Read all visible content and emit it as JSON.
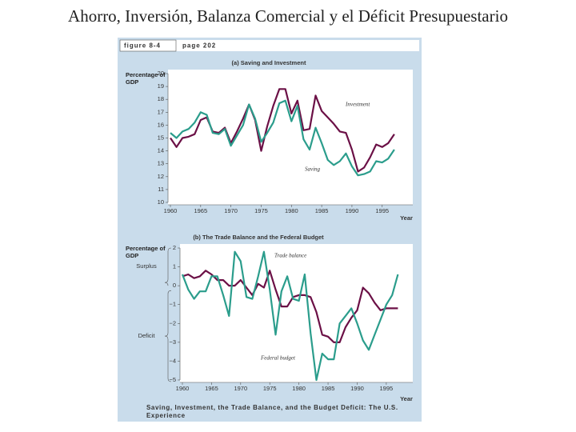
{
  "slide_title": "Ahorro, Inversión, Balanza Comercial y el Déficit Presupuestario",
  "figure_label": "figure 8-4",
  "page_label": "page 202",
  "caption": "Saving, Investment, the Trade Balance, and the Budget Deficit: The U.S. Experience",
  "chart_data": [
    {
      "type": "line",
      "title": "(a) Saving and Investment",
      "y_label": "Percentage of GDP",
      "x_label": "Year",
      "x": [
        1960,
        1961,
        1962,
        1963,
        1964,
        1965,
        1966,
        1967,
        1968,
        1969,
        1970,
        1971,
        1972,
        1973,
        1974,
        1975,
        1976,
        1977,
        1978,
        1979,
        1980,
        1981,
        1982,
        1983,
        1984,
        1985,
        1986,
        1987,
        1988,
        1989,
        1990,
        1991,
        1992,
        1993,
        1994,
        1995,
        1996,
        1997
      ],
      "series": [
        {
          "name": "Investment",
          "color": "#6b1046",
          "values": [
            15.0,
            14.3,
            15.0,
            15.1,
            15.3,
            16.4,
            16.6,
            15.5,
            15.4,
            15.8,
            14.6,
            15.5,
            16.5,
            17.6,
            16.4,
            14.0,
            15.9,
            17.5,
            18.8,
            18.8,
            16.9,
            17.9,
            15.6,
            15.7,
            18.3,
            17.1,
            16.6,
            16.1,
            15.5,
            15.4,
            14.1,
            12.4,
            12.7,
            13.5,
            14.5,
            14.3,
            14.6,
            15.3
          ]
        },
        {
          "name": "Saving",
          "color": "#2b9d8c",
          "values": [
            15.4,
            15.0,
            15.5,
            15.7,
            16.2,
            17.0,
            16.8,
            15.4,
            15.3,
            15.7,
            14.4,
            15.2,
            16.0,
            17.6,
            16.5,
            14.7,
            15.4,
            16.2,
            17.7,
            17.9,
            16.3,
            17.5,
            14.9,
            14.1,
            15.8,
            14.6,
            13.3,
            12.9,
            13.2,
            13.8,
            12.8,
            12.1,
            12.2,
            12.4,
            13.2,
            13.1,
            13.4,
            14.1
          ]
        }
      ],
      "xlim": [
        1960,
        1999
      ],
      "xticks": [
        1960,
        1965,
        1970,
        1975,
        1980,
        1985,
        1990,
        1995
      ],
      "ylim": [
        10,
        20
      ],
      "yticks": [
        10,
        11,
        12,
        13,
        14,
        15,
        16,
        17,
        18,
        19,
        20
      ]
    },
    {
      "type": "line",
      "title": "(b) The Trade Balance and the Federal Budget",
      "y_label": "Percentage of GDP",
      "x_label": "Year",
      "surplus_label": "Surplus",
      "deficit_label": "Deficit",
      "x": [
        1960,
        1961,
        1962,
        1963,
        1964,
        1965,
        1966,
        1967,
        1968,
        1969,
        1970,
        1971,
        1972,
        1973,
        1974,
        1975,
        1976,
        1977,
        1978,
        1979,
        1980,
        1981,
        1982,
        1983,
        1984,
        1985,
        1986,
        1987,
        1988,
        1989,
        1990,
        1991,
        1992,
        1993,
        1994,
        1995,
        1996,
        1997
      ],
      "series": [
        {
          "name": "Trade balance",
          "color": "#6b1046",
          "values": [
            0.5,
            0.6,
            0.4,
            0.5,
            0.8,
            0.6,
            0.3,
            0.3,
            0.0,
            0.0,
            0.3,
            -0.1,
            -0.5,
            0.1,
            -0.1,
            0.8,
            -0.2,
            -1.1,
            -1.1,
            -0.6,
            -0.5,
            -0.5,
            -0.6,
            -1.4,
            -2.6,
            -2.7,
            -3.0,
            -3.0,
            -2.2,
            -1.7,
            -1.3,
            -0.1,
            -0.4,
            -0.9,
            -1.3,
            -1.2,
            -1.2,
            -1.2
          ]
        },
        {
          "name": "Federal budget",
          "color": "#2b9d8c",
          "values": [
            0.6,
            -0.2,
            -0.7,
            -0.3,
            -0.3,
            0.5,
            0.5,
            -0.5,
            -1.6,
            1.8,
            1.3,
            -0.6,
            -0.7,
            0.5,
            1.8,
            -0.2,
            -2.6,
            -0.3,
            0.5,
            -0.7,
            -0.8,
            0.6,
            -2.5,
            -5.0,
            -3.6,
            -3.9,
            -3.9,
            -2.0,
            -1.6,
            -1.2,
            -2.0,
            -2.9,
            -3.4,
            -2.6,
            -1.8,
            -1.0,
            -0.5,
            0.6
          ]
        }
      ],
      "xlim": [
        1960,
        1999
      ],
      "xticks": [
        1960,
        1965,
        1970,
        1975,
        1980,
        1985,
        1990,
        1995
      ],
      "ylim": [
        -5,
        2
      ],
      "yticks": [
        {
          "value": -5,
          "label": "−5"
        },
        {
          "value": -4,
          "label": "−4"
        },
        {
          "value": -3,
          "label": "−3"
        },
        {
          "value": -2,
          "label": "−2"
        },
        {
          "value": -1,
          "label": "−1"
        },
        0,
        1,
        2
      ]
    }
  ]
}
